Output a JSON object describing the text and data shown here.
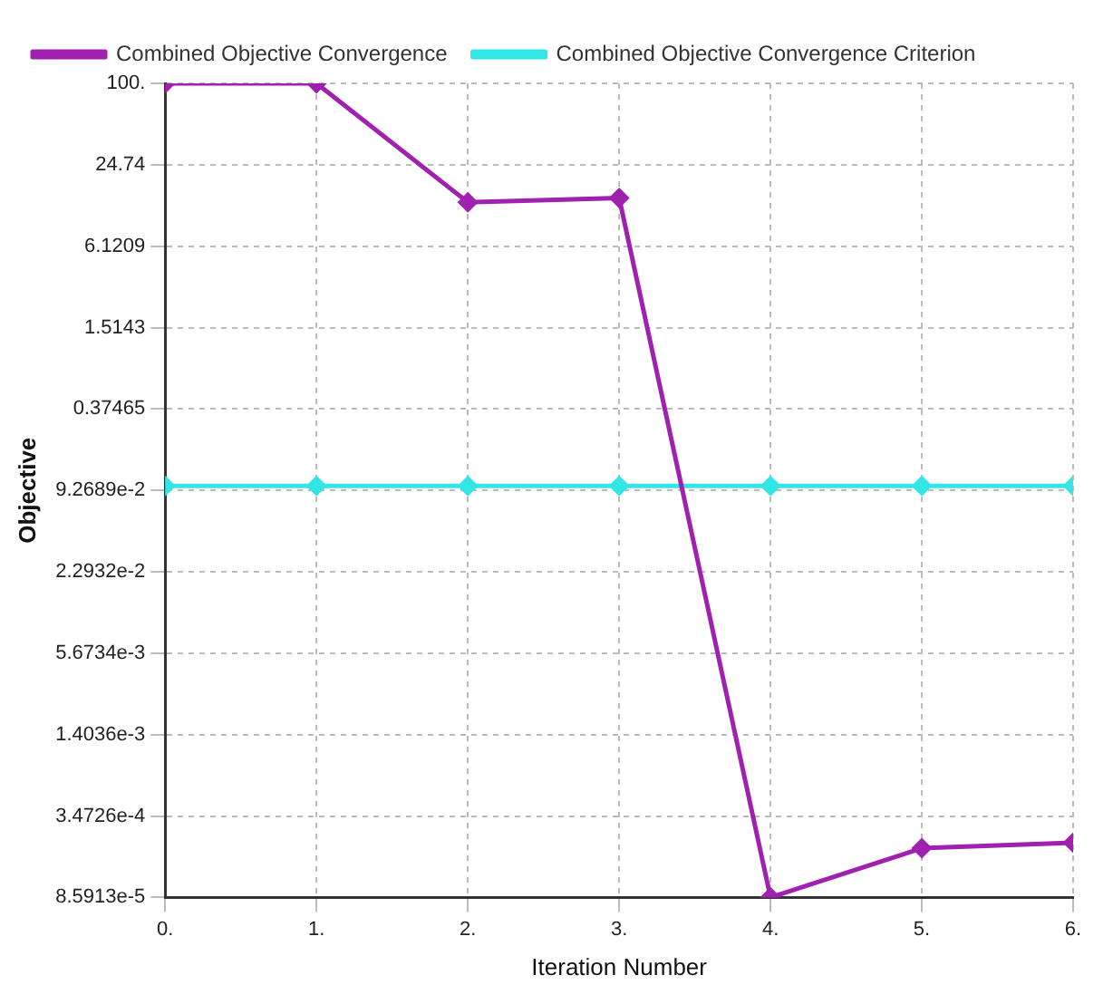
{
  "chart_data": {
    "type": "line",
    "xlabel": "Iteration Number",
    "ylabel": "Objective",
    "x": [
      0,
      1,
      2,
      3,
      4,
      5,
      6
    ],
    "series": [
      {
        "name": "Combined Objective Convergence",
        "color": "#a020b0",
        "values": [
          100,
          100,
          13,
          14,
          8.6e-05,
          0.0002,
          0.00022
        ]
      },
      {
        "name": "Combined Objective Convergence Criterion",
        "color": "#33e6e6",
        "values": [
          0.1,
          0.1,
          0.1,
          0.1,
          0.1,
          0.1,
          0.1
        ]
      }
    ],
    "log": "y",
    "xlim": [
      0,
      6
    ],
    "xticks": [
      {
        "value": 0,
        "label": "0."
      },
      {
        "value": 1,
        "label": "1."
      },
      {
        "value": 2,
        "label": "2."
      },
      {
        "value": 3,
        "label": "3."
      },
      {
        "value": 4,
        "label": "4."
      },
      {
        "value": 5,
        "label": "5."
      },
      {
        "value": 6,
        "label": "6."
      }
    ],
    "ylim": [
      8.5913e-05,
      100
    ],
    "yticks": [
      {
        "value": 8.5913e-05,
        "label": "8.5913e-5"
      },
      {
        "value": 0.00034726,
        "label": "3.4726e-4"
      },
      {
        "value": 0.0014036,
        "label": "1.4036e-3"
      },
      {
        "value": 0.0056734,
        "label": "5.6734e-3"
      },
      {
        "value": 0.022932,
        "label": "2.2932e-2"
      },
      {
        "value": 0.092689,
        "label": "9.2689e-2"
      },
      0.37465,
      1.5143,
      6.1209,
      24.74,
      {
        "value": 100,
        "label": "100."
      }
    ],
    "grid": true,
    "legend": "top left",
    "marker": "diamond",
    "line_style": "solid"
  }
}
